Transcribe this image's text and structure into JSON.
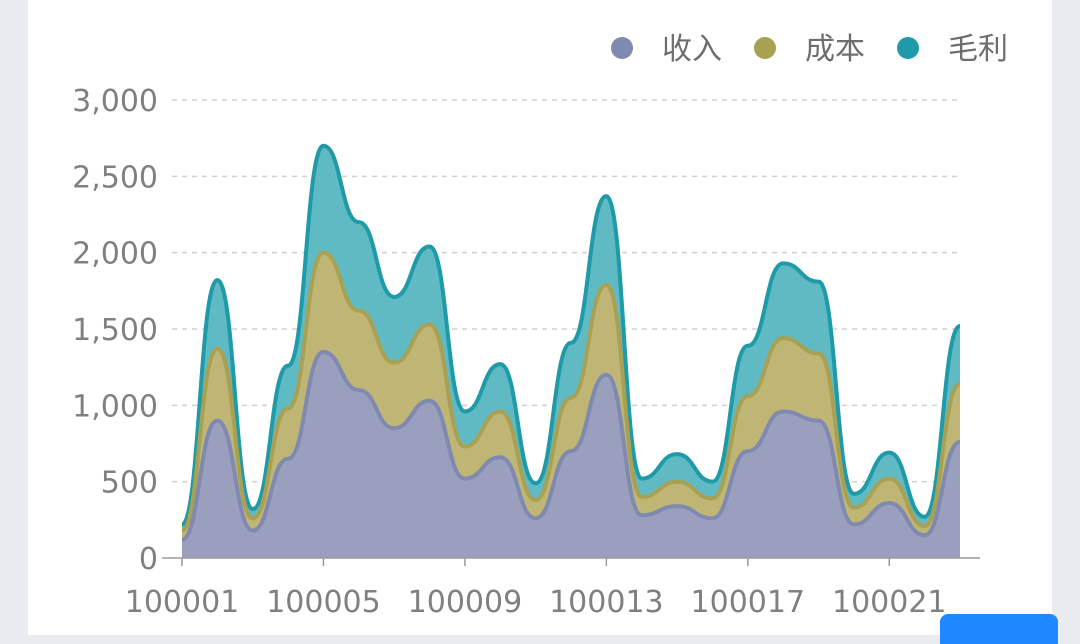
{
  "chart_data": {
    "type": "area",
    "stacked": true,
    "smooth": true,
    "categories": [
      "100001",
      "100002",
      "100003",
      "100004",
      "100005",
      "100006",
      "100007",
      "100008",
      "100009",
      "100010",
      "100011",
      "100012",
      "100013",
      "100014",
      "100015",
      "100016",
      "100017",
      "100018",
      "100019",
      "100020",
      "100021",
      "100022",
      "100023"
    ],
    "tick_labels": [
      "100001",
      "100005",
      "100009",
      "100013",
      "100017",
      "100021"
    ],
    "series": [
      {
        "name": "收入",
        "color": "#8089b0",
        "fill": "#9a9fbd",
        "values": [
          120,
          900,
          180,
          650,
          1350,
          1100,
          850,
          1030,
          520,
          660,
          260,
          700,
          1200,
          280,
          340,
          260,
          700,
          960,
          900,
          220,
          360,
          150,
          760
        ]
      },
      {
        "name": "成本",
        "color": "#a8a052",
        "fill": "#bfb675",
        "values": [
          60,
          470,
          80,
          330,
          650,
          520,
          430,
          500,
          210,
          300,
          120,
          350,
          590,
          120,
          160,
          130,
          360,
          480,
          440,
          110,
          160,
          60,
          380
        ]
      },
      {
        "name": "毛利",
        "color": "#1e9aa8",
        "fill": "#5fbac4",
        "values": [
          40,
          450,
          60,
          280,
          700,
          580,
          430,
          510,
          230,
          310,
          110,
          360,
          580,
          120,
          180,
          110,
          330,
          490,
          470,
          90,
          170,
          60,
          380
        ]
      }
    ],
    "y_ticks": [
      "0",
      "500",
      "1,000",
      "1,500",
      "2,000",
      "2,500",
      "3,000"
    ],
    "ylim": [
      0,
      3000
    ],
    "grid": true,
    "legend_position": "top-right",
    "title": "",
    "xlabel": "",
    "ylabel": ""
  }
}
